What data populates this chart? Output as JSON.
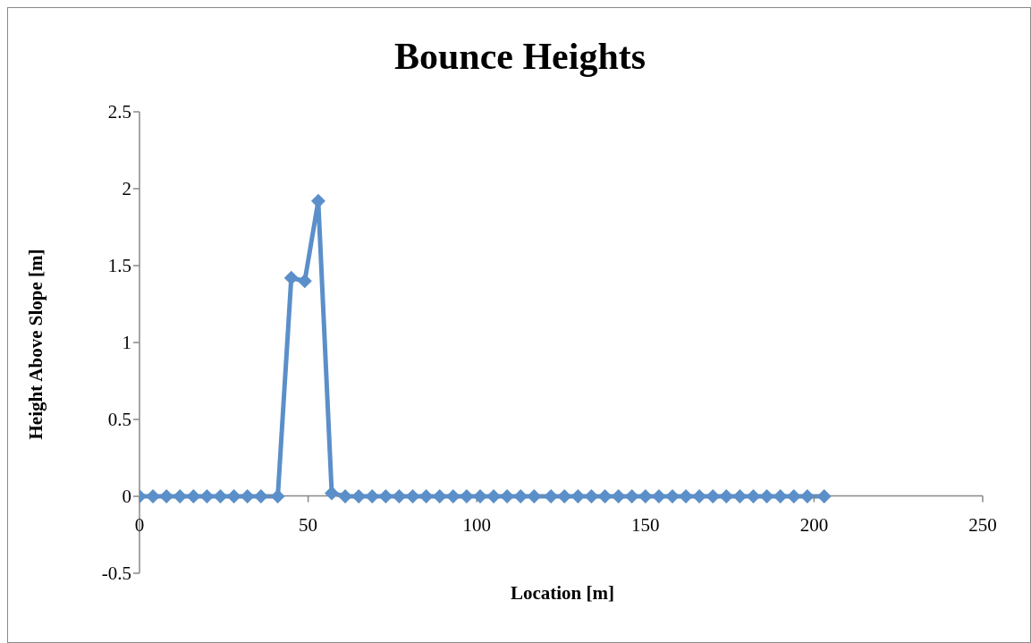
{
  "chart_data": {
    "type": "line",
    "title": "Bounce Heights",
    "xlabel": "Location [m]",
    "ylabel": "Height Above Slope [m]",
    "x": [
      0,
      4,
      8,
      12,
      16,
      20,
      24,
      28,
      32,
      36,
      41,
      45,
      49,
      53,
      57,
      61,
      65,
      69,
      73,
      77,
      81,
      85,
      89,
      93,
      97,
      101,
      105,
      109,
      113,
      117,
      122,
      126,
      130,
      134,
      138,
      142,
      146,
      150,
      154,
      158,
      162,
      166,
      170,
      174,
      178,
      182,
      186,
      190,
      194,
      198,
      203
    ],
    "series": [
      {
        "color": "#5b8fc9",
        "values": [
          0,
          0,
          0,
          0,
          0,
          0,
          0,
          0,
          0,
          0,
          0,
          1.42,
          1.4,
          1.92,
          0.02,
          0,
          0,
          0,
          0,
          0,
          0,
          0,
          0,
          0,
          0,
          0,
          0,
          0,
          0,
          0,
          0,
          0,
          0,
          0,
          0,
          0,
          0,
          0,
          0,
          0,
          0,
          0,
          0,
          0,
          0,
          0,
          0,
          0,
          0,
          0,
          0
        ]
      }
    ],
    "xlim": [
      0,
      250
    ],
    "xticks": [
      0,
      50,
      100,
      150,
      200,
      250
    ],
    "ylim": [
      -0.5,
      2.5
    ],
    "yticks": [
      -0.5,
      0,
      0.5,
      1,
      1.5,
      2,
      2.5
    ],
    "grid": false,
    "legend": false,
    "marker": "diamond",
    "line_style": "solid"
  }
}
